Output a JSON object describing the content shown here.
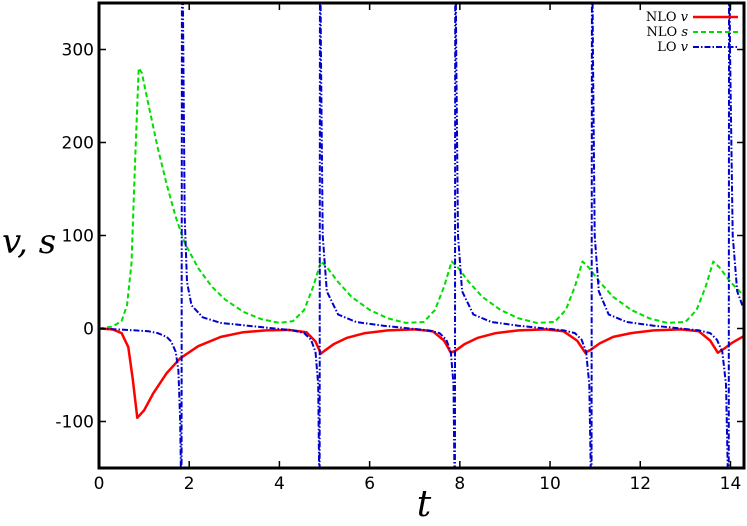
{
  "chart_data": {
    "type": "line",
    "xlabel": "t",
    "ylabel": "v, s",
    "xlim": [
      0,
      14.3
    ],
    "ylim": [
      -150,
      350
    ],
    "xticks": [
      0,
      2,
      4,
      6,
      8,
      10,
      12,
      14
    ],
    "yticks": [
      -100,
      0,
      100,
      200,
      300
    ],
    "legend_position": "top-right",
    "grid": false,
    "series": [
      {
        "name": "NLO v",
        "legend_prefix": "NLO",
        "legend_var": "v",
        "color": "#ff0000",
        "dash": "solid",
        "points": [
          [
            0,
            0
          ],
          [
            0.3,
            -1
          ],
          [
            0.5,
            -5
          ],
          [
            0.65,
            -20
          ],
          [
            0.75,
            -55
          ],
          [
            0.85,
            -96
          ],
          [
            1.0,
            -88
          ],
          [
            1.2,
            -70
          ],
          [
            1.5,
            -48
          ],
          [
            1.8,
            -32
          ],
          [
            2.2,
            -19
          ],
          [
            2.7,
            -9
          ],
          [
            3.2,
            -4
          ],
          [
            3.7,
            -2
          ],
          [
            4.2,
            -1.5
          ],
          [
            4.6,
            -4
          ],
          [
            4.8,
            -14
          ],
          [
            4.92,
            -27
          ],
          [
            5.0,
            -24
          ],
          [
            5.2,
            -17
          ],
          [
            5.5,
            -10
          ],
          [
            5.9,
            -5
          ],
          [
            6.4,
            -2
          ],
          [
            7.0,
            -1
          ],
          [
            7.4,
            -3
          ],
          [
            7.65,
            -13
          ],
          [
            7.8,
            -26
          ],
          [
            7.9,
            -24
          ],
          [
            8.1,
            -17
          ],
          [
            8.4,
            -10
          ],
          [
            8.8,
            -5
          ],
          [
            9.3,
            -2
          ],
          [
            9.9,
            -1
          ],
          [
            10.3,
            -3
          ],
          [
            10.6,
            -13
          ],
          [
            10.78,
            -26
          ],
          [
            10.9,
            -23
          ],
          [
            11.1,
            -16
          ],
          [
            11.4,
            -9
          ],
          [
            11.8,
            -5
          ],
          [
            12.3,
            -2
          ],
          [
            12.9,
            -1
          ],
          [
            13.3,
            -3
          ],
          [
            13.55,
            -13
          ],
          [
            13.72,
            -26
          ],
          [
            13.85,
            -22
          ],
          [
            14.05,
            -15
          ],
          [
            14.3,
            -8
          ]
        ]
      },
      {
        "name": "NLO s",
        "legend_prefix": "NLO",
        "legend_var": "s",
        "color": "#00dd00",
        "dash": "5,3",
        "points": [
          [
            0,
            0
          ],
          [
            0.3,
            2
          ],
          [
            0.5,
            8
          ],
          [
            0.62,
            25
          ],
          [
            0.72,
            70
          ],
          [
            0.8,
            180
          ],
          [
            0.88,
            280
          ],
          [
            0.95,
            275
          ],
          [
            1.1,
            240
          ],
          [
            1.3,
            195
          ],
          [
            1.5,
            155
          ],
          [
            1.7,
            120
          ],
          [
            1.9,
            92
          ],
          [
            2.2,
            65
          ],
          [
            2.5,
            45
          ],
          [
            2.8,
            31
          ],
          [
            3.2,
            18
          ],
          [
            3.6,
            10
          ],
          [
            4.0,
            6
          ],
          [
            4.3,
            8
          ],
          [
            4.55,
            20
          ],
          [
            4.75,
            45
          ],
          [
            4.92,
            72
          ],
          [
            5.05,
            66
          ],
          [
            5.3,
            50
          ],
          [
            5.6,
            34
          ],
          [
            6.0,
            20
          ],
          [
            6.4,
            11
          ],
          [
            6.8,
            6
          ],
          [
            7.2,
            7
          ],
          [
            7.45,
            20
          ],
          [
            7.65,
            45
          ],
          [
            7.82,
            72
          ],
          [
            7.95,
            66
          ],
          [
            8.2,
            50
          ],
          [
            8.5,
            34
          ],
          [
            8.9,
            20
          ],
          [
            9.3,
            11
          ],
          [
            9.7,
            6
          ],
          [
            10.1,
            7
          ],
          [
            10.35,
            20
          ],
          [
            10.55,
            45
          ],
          [
            10.72,
            72
          ],
          [
            10.85,
            66
          ],
          [
            11.1,
            50
          ],
          [
            11.4,
            34
          ],
          [
            11.8,
            20
          ],
          [
            12.2,
            11
          ],
          [
            12.6,
            6
          ],
          [
            13.0,
            7
          ],
          [
            13.25,
            20
          ],
          [
            13.45,
            45
          ],
          [
            13.62,
            72
          ],
          [
            13.75,
            66
          ],
          [
            14.0,
            50
          ],
          [
            14.3,
            35
          ]
        ]
      },
      {
        "name": "LO v",
        "legend_prefix": "LO",
        "legend_var": "v",
        "color": "#0000cc",
        "dash": "6,2,1.5,2",
        "points": [
          [
            0,
            0
          ],
          [
            0.4,
            -1
          ],
          [
            0.8,
            -2
          ],
          [
            1.1,
            -3
          ],
          [
            1.3,
            -5
          ],
          [
            1.5,
            -9
          ],
          [
            1.6,
            -14
          ],
          [
            1.7,
            -25
          ],
          [
            1.76,
            -45
          ],
          [
            1.8,
            -100
          ],
          [
            1.83,
            -200
          ],
          [
            1.84,
            450
          ],
          [
            1.86,
            350
          ],
          [
            1.9,
            120
          ],
          [
            1.95,
            50
          ],
          [
            2.05,
            25
          ],
          [
            2.3,
            12
          ],
          [
            2.7,
            6
          ],
          [
            3.3,
            3
          ],
          [
            3.9,
            0
          ],
          [
            4.3,
            -2
          ],
          [
            4.55,
            -5
          ],
          [
            4.7,
            -12
          ],
          [
            4.8,
            -25
          ],
          [
            4.86,
            -60
          ],
          [
            4.89,
            -200
          ],
          [
            4.9,
            450
          ],
          [
            4.92,
            300
          ],
          [
            4.96,
            100
          ],
          [
            5.05,
            40
          ],
          [
            5.3,
            15
          ],
          [
            5.7,
            7
          ],
          [
            6.3,
            3
          ],
          [
            6.9,
            0
          ],
          [
            7.3,
            -2
          ],
          [
            7.55,
            -5
          ],
          [
            7.7,
            -12
          ],
          [
            7.8,
            -25
          ],
          [
            7.86,
            -60
          ],
          [
            7.89,
            -200
          ],
          [
            7.9,
            450
          ],
          [
            7.92,
            300
          ],
          [
            7.96,
            100
          ],
          [
            8.05,
            40
          ],
          [
            8.3,
            15
          ],
          [
            8.7,
            7
          ],
          [
            9.3,
            3
          ],
          [
            9.9,
            0
          ],
          [
            10.3,
            -2
          ],
          [
            10.55,
            -5
          ],
          [
            10.7,
            -12
          ],
          [
            10.8,
            -25
          ],
          [
            10.87,
            -60
          ],
          [
            10.92,
            -200
          ],
          [
            10.93,
            450
          ],
          [
            10.95,
            300
          ],
          [
            10.99,
            100
          ],
          [
            11.08,
            40
          ],
          [
            11.3,
            15
          ],
          [
            11.7,
            7
          ],
          [
            12.3,
            3
          ],
          [
            12.9,
            0
          ],
          [
            13.3,
            -2
          ],
          [
            13.55,
            -5
          ],
          [
            13.7,
            -12
          ],
          [
            13.82,
            -25
          ],
          [
            13.9,
            -60
          ],
          [
            13.96,
            -200
          ],
          [
            13.97,
            450
          ],
          [
            13.99,
            300
          ],
          [
            14.05,
            100
          ],
          [
            14.15,
            40
          ],
          [
            14.3,
            20
          ]
        ]
      }
    ]
  }
}
